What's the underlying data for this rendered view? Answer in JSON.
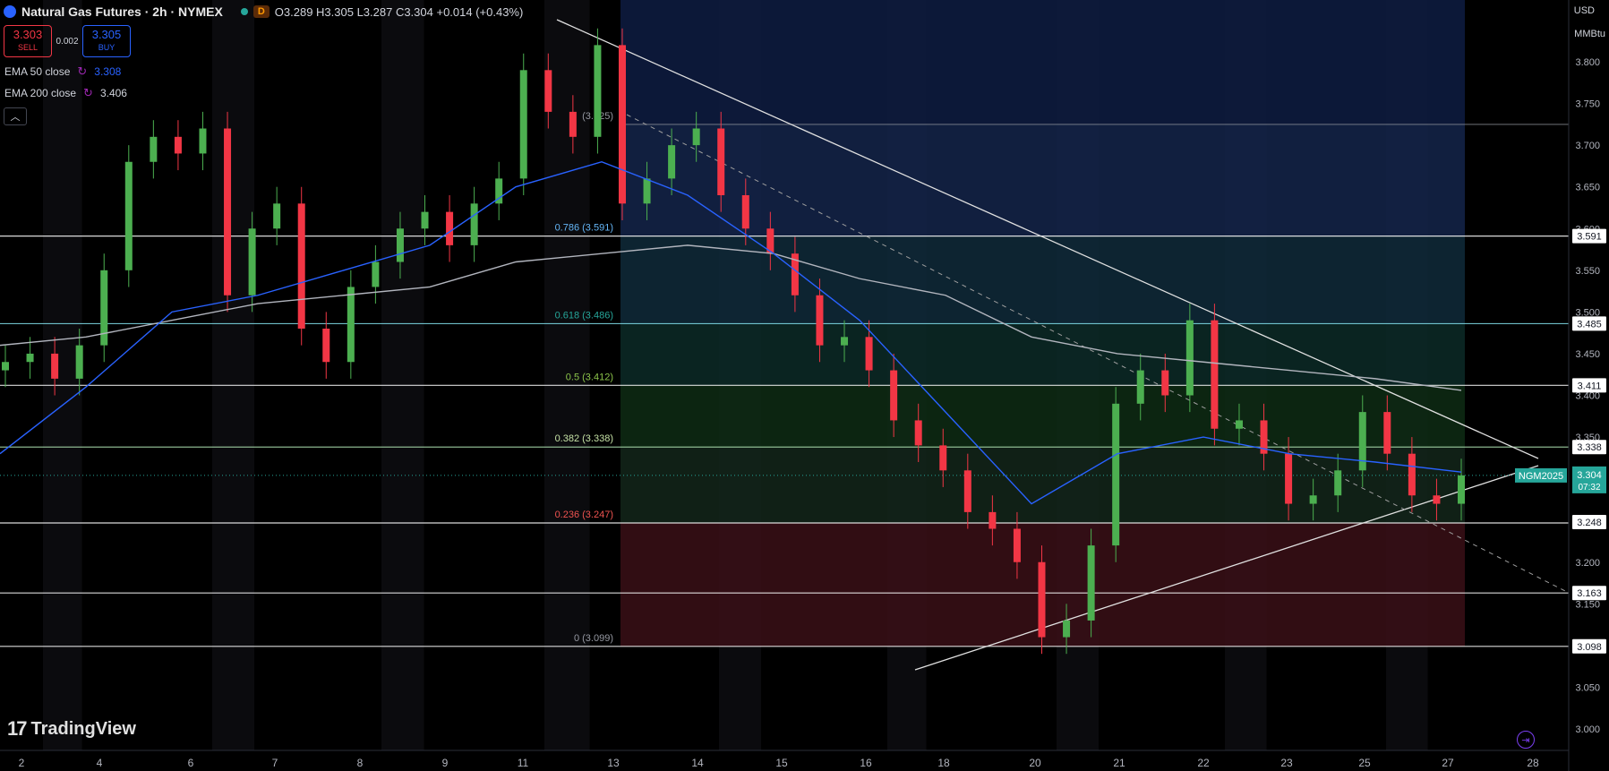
{
  "header": {
    "title": "Natural Gas Futures · 2h · NYMEX",
    "interval_badge": "D",
    "ohlc": "O3.289 H3.305 L3.287 C3.304 +0.014 (+0.43%)"
  },
  "trade": {
    "sell_price": "3.303",
    "sell_label": "SELL",
    "spread": "0.002",
    "buy_price": "3.305",
    "buy_label": "BUY"
  },
  "indicators": {
    "ema50_label": "EMA 50 close",
    "ema50_value": "3.308",
    "ema200_label": "EMA 200 close",
    "ema200_value": "3.406"
  },
  "axis": {
    "currency": "USD",
    "unit": "MMBtu"
  },
  "logo_text": "TradingView",
  "colors": {
    "up": "#26a69a",
    "up_candle": "#4caf50",
    "down": "#f23645",
    "ema50": "#2962ff",
    "ema200": "#b2b5be",
    "fib_top_band": "#0d1b3e",
    "fib_red_band": "#3a0d12"
  },
  "chart_data": {
    "type": "line",
    "title": "Natural Gas Futures · 2h · NYMEX",
    "symbol_label": "NGM2025",
    "countdown": "07:32",
    "last_price": "3.304",
    "ylim": [
      2.97,
      3.84
    ],
    "y_ticks": [
      3.0,
      3.05,
      3.1,
      3.15,
      3.2,
      3.25,
      3.3,
      3.35,
      3.4,
      3.45,
      3.5,
      3.55,
      3.6,
      3.65,
      3.7,
      3.75,
      3.8
    ],
    "x_ticks": [
      "2",
      "4",
      "6",
      "7",
      "8",
      "9",
      "11",
      "13",
      "14",
      "15",
      "16",
      "18",
      "20",
      "21",
      "22",
      "23",
      "25",
      "27",
      "28"
    ],
    "fib_levels": [
      {
        "label": "(3.725)",
        "value": 3.725
      },
      {
        "label": "0.786 (3.591)",
        "value": 3.591
      },
      {
        "label": "0.618 (3.486)",
        "value": 3.486
      },
      {
        "label": "0.5 (3.412)",
        "value": 3.412
      },
      {
        "label": "0.382 (3.338)",
        "value": 3.338
      },
      {
        "label": "0.236 (3.247)",
        "value": 3.247
      },
      {
        "label": "0 (3.099)",
        "value": 3.099
      }
    ],
    "price_tags": [
      "3.591",
      "3.485",
      "3.411",
      "3.338",
      "3.248",
      "3.163",
      "3.098"
    ],
    "close_series": {
      "x": [
        "2",
        "2",
        "2",
        "2",
        "4",
        "4",
        "4",
        "4",
        "4",
        "6",
        "6",
        "6",
        "7",
        "7",
        "7",
        "7",
        "8",
        "8",
        "8",
        "9",
        "9",
        "9",
        "9",
        "11",
        "11",
        "11",
        "11",
        "13",
        "13",
        "13",
        "14",
        "14",
        "14",
        "15",
        "15",
        "15",
        "16",
        "16",
        "16",
        "18",
        "18",
        "18",
        "20",
        "20",
        "20",
        "20",
        "21",
        "21",
        "21",
        "22",
        "22",
        "22",
        "23",
        "23",
        "23",
        "25",
        "25",
        "25",
        "27",
        "27"
      ],
      "y": [
        3.44,
        3.45,
        3.42,
        3.46,
        3.55,
        3.68,
        3.71,
        3.69,
        3.72,
        3.52,
        3.6,
        3.63,
        3.48,
        3.44,
        3.53,
        3.56,
        3.6,
        3.62,
        3.58,
        3.63,
        3.66,
        3.79,
        3.74,
        3.71,
        3.82,
        3.63,
        3.66,
        3.7,
        3.72,
        3.64,
        3.6,
        3.57,
        3.52,
        3.46,
        3.47,
        3.43,
        3.37,
        3.34,
        3.31,
        3.26,
        3.24,
        3.2,
        3.11,
        3.13,
        3.22,
        3.39,
        3.43,
        3.4,
        3.49,
        3.36,
        3.37,
        3.33,
        3.27,
        3.28,
        3.31,
        3.38,
        3.33,
        3.28,
        3.27,
        3.304
      ]
    },
    "ema50_series": {
      "x": [
        "2",
        "4",
        "6",
        "7",
        "8",
        "9",
        "11",
        "13",
        "14",
        "15",
        "16",
        "18",
        "20",
        "21",
        "22",
        "23",
        "25",
        "27"
      ],
      "y": [
        3.33,
        3.41,
        3.5,
        3.52,
        3.55,
        3.58,
        3.65,
        3.68,
        3.64,
        3.57,
        3.49,
        3.38,
        3.27,
        3.33,
        3.35,
        3.33,
        3.32,
        3.308
      ]
    },
    "ema200_series": {
      "x": [
        "2",
        "4",
        "6",
        "7",
        "8",
        "9",
        "11",
        "13",
        "14",
        "15",
        "16",
        "18",
        "20",
        "21",
        "22",
        "23",
        "25",
        "27"
      ],
      "y": [
        3.46,
        3.47,
        3.49,
        3.51,
        3.52,
        3.53,
        3.56,
        3.57,
        3.58,
        3.57,
        3.54,
        3.52,
        3.47,
        3.45,
        3.44,
        3.43,
        3.42,
        3.406
      ]
    },
    "grid": false
  }
}
